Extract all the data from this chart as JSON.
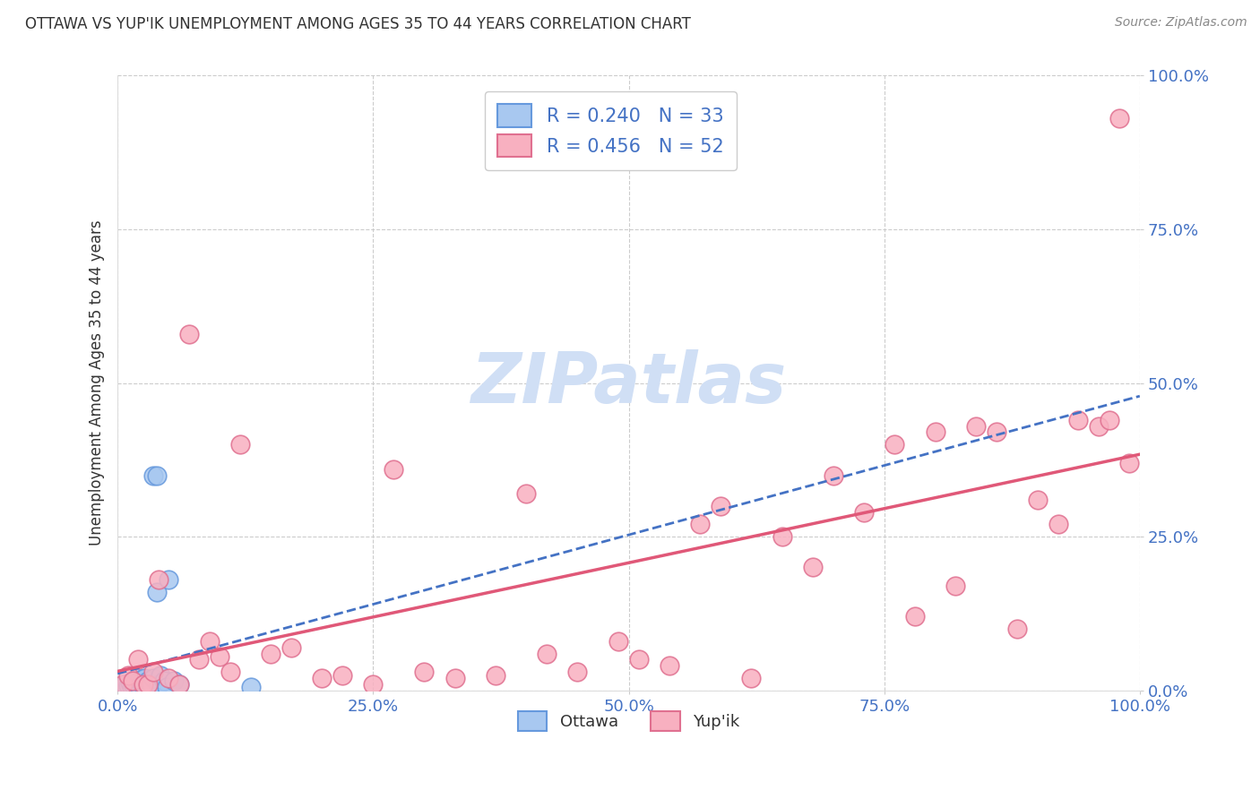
{
  "title": "OTTAWA VS YUP'IK UNEMPLOYMENT AMONG AGES 35 TO 44 YEARS CORRELATION CHART",
  "source": "Source: ZipAtlas.com",
  "ylabel": "Unemployment Among Ages 35 to 44 years",
  "xlim": [
    0,
    1
  ],
  "ylim": [
    0,
    1
  ],
  "xticks": [
    0.0,
    0.25,
    0.5,
    0.75,
    1.0
  ],
  "yticks": [
    0.0,
    0.25,
    0.5,
    0.75,
    1.0
  ],
  "xtick_labels": [
    "0.0%",
    "25.0%",
    "50.0%",
    "75.0%",
    "100.0%"
  ],
  "ytick_labels": [
    "0.0%",
    "25.0%",
    "50.0%",
    "75.0%",
    "100.0%"
  ],
  "ottawa_color": "#a8c8f0",
  "yupik_color": "#f8b0c0",
  "ottawa_edge_color": "#6699dd",
  "yupik_edge_color": "#e07090",
  "trendline_ottawa_color": "#4472c4",
  "trendline_yupik_color": "#e05878",
  "background_color": "#ffffff",
  "grid_color": "#cccccc",
  "title_color": "#333333",
  "axis_label_color": "#333333",
  "tick_label_color": "#4472c4",
  "watermark_text": "ZIPatlas",
  "watermark_color": "#d0dff5",
  "ottawa_R": 0.24,
  "ottawa_N": 33,
  "yupik_R": 0.456,
  "yupik_N": 52,
  "ottawa_x": [
    0.005,
    0.007,
    0.01,
    0.012,
    0.014,
    0.015,
    0.016,
    0.018,
    0.019,
    0.02,
    0.021,
    0.022,
    0.023,
    0.024,
    0.025,
    0.026,
    0.027,
    0.028,
    0.03,
    0.031,
    0.033,
    0.035,
    0.038,
    0.04,
    0.042,
    0.045,
    0.048,
    0.05,
    0.055,
    0.06,
    0.035,
    0.038,
    0.13
  ],
  "ottawa_y": [
    0.005,
    0.01,
    0.008,
    0.012,
    0.005,
    0.015,
    0.008,
    0.02,
    0.005,
    0.01,
    0.015,
    0.005,
    0.012,
    0.018,
    0.008,
    0.02,
    0.005,
    0.01,
    0.015,
    0.008,
    0.01,
    0.02,
    0.16,
    0.01,
    0.025,
    0.015,
    0.005,
    0.18,
    0.015,
    0.01,
    0.35,
    0.35,
    0.005
  ],
  "yupik_x": [
    0.005,
    0.01,
    0.015,
    0.02,
    0.025,
    0.03,
    0.035,
    0.04,
    0.05,
    0.06,
    0.07,
    0.08,
    0.09,
    0.1,
    0.11,
    0.12,
    0.15,
    0.17,
    0.2,
    0.22,
    0.25,
    0.27,
    0.3,
    0.33,
    0.37,
    0.4,
    0.42,
    0.45,
    0.49,
    0.51,
    0.54,
    0.57,
    0.59,
    0.62,
    0.65,
    0.68,
    0.7,
    0.73,
    0.76,
    0.78,
    0.8,
    0.82,
    0.84,
    0.86,
    0.88,
    0.9,
    0.92,
    0.94,
    0.96,
    0.97,
    0.98,
    0.99
  ],
  "yupik_y": [
    0.01,
    0.025,
    0.015,
    0.05,
    0.01,
    0.01,
    0.03,
    0.18,
    0.02,
    0.01,
    0.58,
    0.05,
    0.08,
    0.055,
    0.03,
    0.4,
    0.06,
    0.07,
    0.02,
    0.025,
    0.01,
    0.36,
    0.03,
    0.02,
    0.025,
    0.32,
    0.06,
    0.03,
    0.08,
    0.05,
    0.04,
    0.27,
    0.3,
    0.02,
    0.25,
    0.2,
    0.35,
    0.29,
    0.4,
    0.12,
    0.42,
    0.17,
    0.43,
    0.42,
    0.1,
    0.31,
    0.27,
    0.44,
    0.43,
    0.44,
    0.93,
    0.37
  ]
}
